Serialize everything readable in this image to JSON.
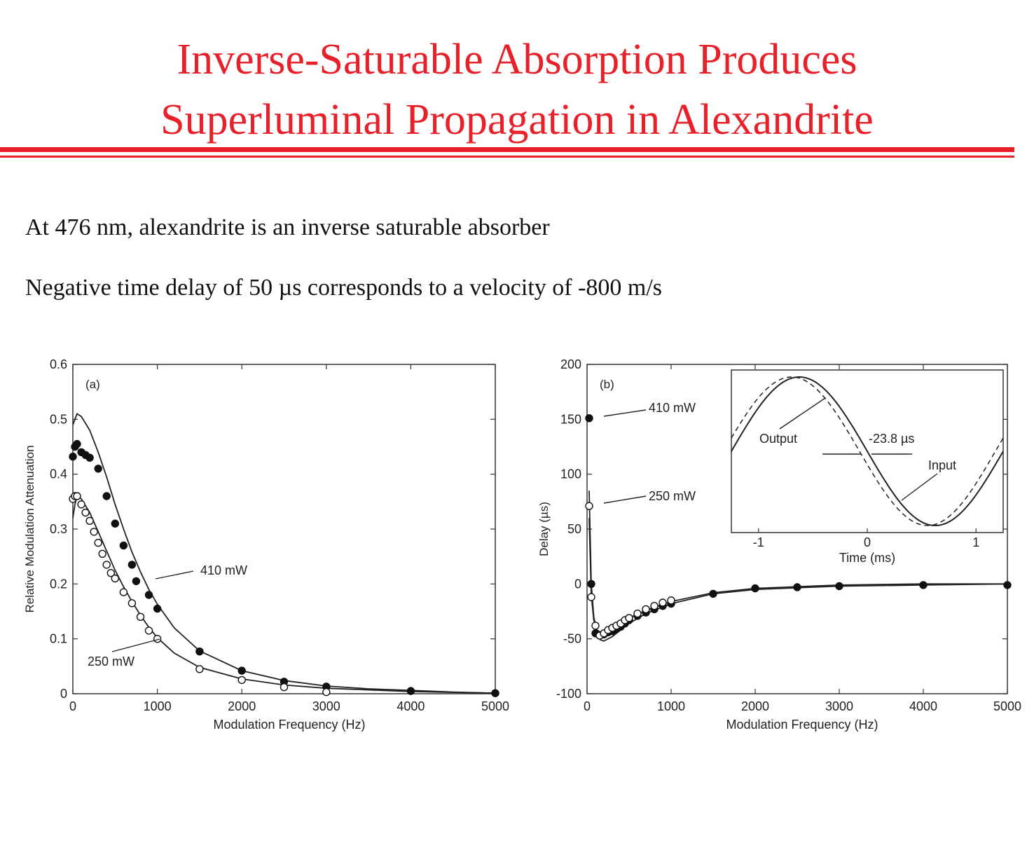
{
  "title": {
    "line1": "Inverse-Saturable Absorption Produces",
    "line2": "Superluminal Propagation in Alexandrite"
  },
  "bullets": [
    "At 476 nm, alexandrite is an inverse saturable absorber",
    "Negative time delay of 50 µs corresponds to a velocity of -800 m/s"
  ],
  "colors": {
    "title": "#e8202a",
    "ink": "#222222"
  },
  "chart_data": [
    {
      "type": "scatter",
      "panel_label": "(a)",
      "xlabel": "Modulation Frequency (Hz)",
      "ylabel": "Relative Modulation Attenuation",
      "xlim": [
        0,
        5000
      ],
      "ylim": [
        0,
        0.6
      ],
      "xticks": [
        0,
        1000,
        2000,
        3000,
        4000,
        5000
      ],
      "yticks": [
        0,
        0.1,
        0.2,
        0.3,
        0.4,
        0.5,
        0.6
      ],
      "ytick_labels": [
        "0",
        "0.1",
        "0.2",
        "0.3",
        "0.4",
        "0.5",
        "0.6"
      ],
      "grid": false,
      "series": [
        {
          "name": "410 mW",
          "marker": "filled-circle",
          "x": [
            0,
            25,
            50,
            100,
            150,
            200,
            300,
            400,
            500,
            600,
            700,
            750,
            900,
            1000,
            1500,
            2000,
            2500,
            3000,
            4000,
            5000
          ],
          "y": [
            0.432,
            0.45,
            0.455,
            0.44,
            0.435,
            0.43,
            0.41,
            0.36,
            0.31,
            0.27,
            0.235,
            0.205,
            0.18,
            0.155,
            0.077,
            0.042,
            0.022,
            0.013,
            0.005,
            0.001
          ],
          "fit": {
            "x": [
              0,
              50,
              100,
              200,
              300,
              400,
              500,
              600,
              700,
              800,
              900,
              1000,
              1200,
              1500,
              2000,
              2500,
              3000,
              3500,
              4000,
              4500,
              5000
            ],
            "y": [
              0.49,
              0.51,
              0.505,
              0.48,
              0.44,
              0.395,
              0.345,
              0.3,
              0.258,
              0.222,
              0.19,
              0.163,
              0.12,
              0.078,
              0.042,
              0.024,
              0.014,
              0.009,
              0.006,
              0.003,
              0.001
            ]
          }
        },
        {
          "name": "250 mW",
          "marker": "open-circle",
          "x": [
            0,
            25,
            50,
            100,
            150,
            200,
            250,
            300,
            350,
            400,
            450,
            500,
            600,
            700,
            800,
            900,
            1000,
            1500,
            2000,
            2500,
            3000
          ],
          "y": [
            0.355,
            0.36,
            0.36,
            0.345,
            0.33,
            0.315,
            0.295,
            0.275,
            0.255,
            0.235,
            0.22,
            0.21,
            0.185,
            0.165,
            0.14,
            0.115,
            0.1,
            0.045,
            0.025,
            0.012,
            0.003
          ],
          "fit": {
            "x": [
              0,
              25,
              50,
              100,
              200,
              300,
              400,
              500,
              600,
              700,
              800,
              900,
              1000,
              1200,
              1500,
              2000,
              2500,
              3000,
              4000,
              5000
            ],
            "y": [
              0.32,
              0.345,
              0.36,
              0.355,
              0.33,
              0.295,
              0.26,
              0.225,
              0.195,
              0.168,
              0.143,
              0.121,
              0.102,
              0.074,
              0.048,
              0.027,
              0.016,
              0.01,
              0.004,
              0.001
            ]
          }
        }
      ],
      "annotations": [
        "410 mW",
        "250 mW"
      ]
    },
    {
      "type": "scatter",
      "panel_label": "(b)",
      "xlabel": "Modulation Frequency (Hz)",
      "ylabel": "Delay (µs)",
      "xlim": [
        0,
        5000
      ],
      "ylim": [
        -100,
        200
      ],
      "xticks": [
        0,
        1000,
        2000,
        3000,
        4000,
        5000
      ],
      "yticks": [
        -100,
        -50,
        0,
        50,
        100,
        150,
        200
      ],
      "grid": false,
      "series": [
        {
          "name": "410 mW",
          "marker": "filled-circle",
          "x": [
            25,
            50,
            100,
            150,
            200,
            250,
            300,
            350,
            400,
            450,
            500,
            600,
            700,
            800,
            900,
            1000,
            1500,
            2000,
            2500,
            3000,
            4000,
            5000
          ],
          "y": [
            151,
            0,
            -45,
            -47,
            -46,
            -44,
            -43,
            -41,
            -39,
            -36,
            -33,
            -29,
            -26,
            -23,
            -20,
            -18,
            -9,
            -4,
            -3,
            -2,
            -1,
            -1
          ],
          "fit": {
            "x": [
              25,
              50,
              80,
              120,
              160,
              200,
              300,
              400,
              500,
              700,
              1000,
              1500,
              2000,
              3000,
              4000,
              5000
            ],
            "y": [
              85,
              0,
              -30,
              -45,
              -51,
              -52,
              -48,
              -42,
              -36,
              -27,
              -18,
              -9,
              -5,
              -2,
              -1,
              0
            ]
          }
        },
        {
          "name": "250 mW",
          "marker": "open-circle",
          "x": [
            25,
            50,
            100,
            150,
            200,
            250,
            300,
            350,
            400,
            450,
            500,
            600,
            700,
            800,
            900,
            1000
          ],
          "y": [
            71,
            -12,
            -38,
            -47,
            -45,
            -42,
            -40,
            -38,
            -36,
            -33,
            -31,
            -27,
            -23,
            -20,
            -17,
            -15
          ],
          "fit": {
            "x": [
              25,
              50,
              80,
              120,
              160,
              200,
              300,
              400,
              500,
              700,
              1000,
              1500,
              2000,
              3000,
              4000,
              5000
            ],
            "y": [
              60,
              -10,
              -33,
              -42,
              -44,
              -43,
              -39,
              -35,
              -31,
              -24,
              -16,
              -8,
              -4,
              -1,
              0,
              0
            ]
          }
        }
      ],
      "annotations": [
        "410 mW",
        "250 mW"
      ],
      "inset": {
        "type": "line",
        "xlabel": "Time (ms)",
        "xlim": [
          -1.25,
          1.25
        ],
        "xticks": [
          -1,
          0,
          1
        ],
        "series": [
          {
            "name": "Output",
            "style": "dashed",
            "phase_shift_ms": 0.0238
          },
          {
            "name": "Input",
            "style": "solid",
            "phase_shift_ms": 0
          }
        ],
        "annotations": [
          "Output",
          "-23.8 µs",
          "Input"
        ]
      }
    }
  ]
}
